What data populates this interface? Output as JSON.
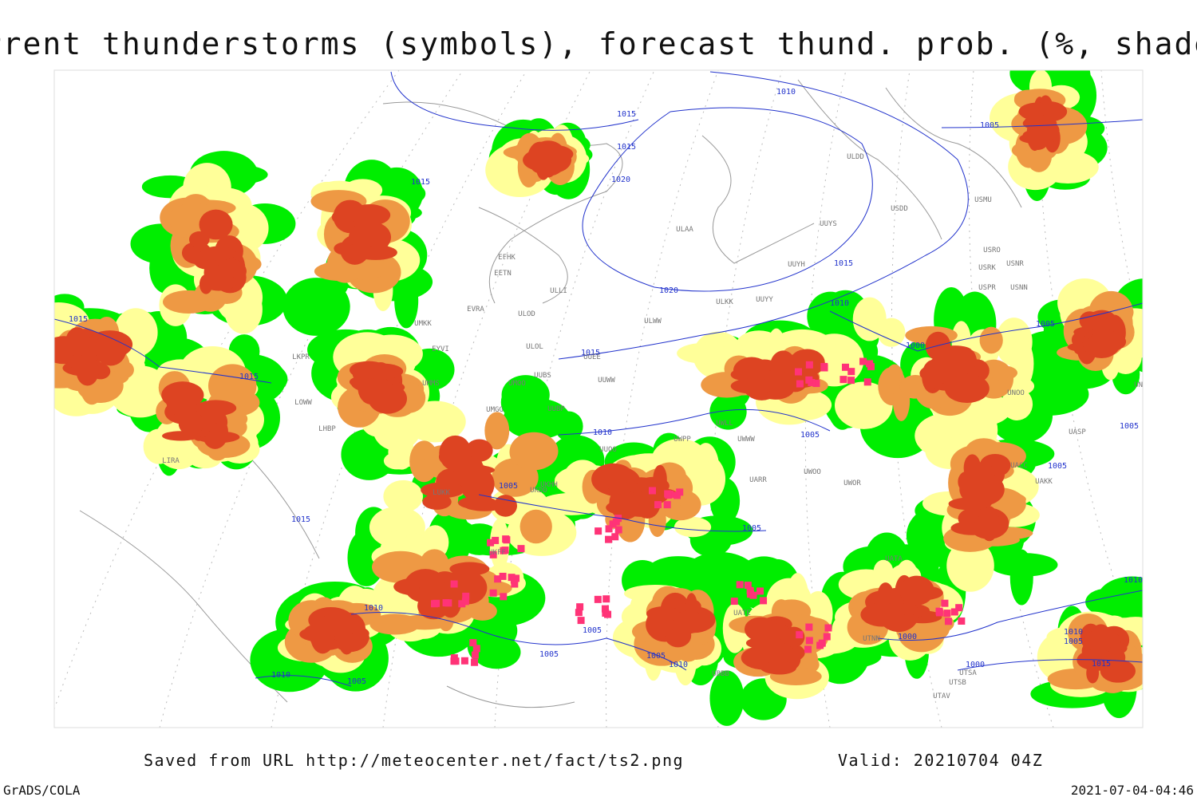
{
  "title": "Current thunderstorms (symbols), forecast thund. prob. (%, shaded)",
  "footer": {
    "source": "Saved from URL http://meteocenter.net/fact/ts2.png",
    "valid": "Valid: 20210704 04Z",
    "software": "GrADS/COLA",
    "timestamp": "2021-07-04-04:46"
  },
  "isobar_labels": [
    "1010",
    "1015",
    "1015",
    "1020",
    "1015",
    "1005",
    "1015",
    "1020",
    "1010",
    "1005",
    "1000",
    "1015",
    "1015",
    "1015",
    "1010",
    "1005",
    "1005",
    "1005",
    "1005",
    "1005",
    "1015",
    "1010",
    "1005",
    "1005",
    "1005",
    "1010",
    "1000",
    "1010",
    "1005",
    "1000",
    "1015",
    "1010",
    "1005",
    "1010"
  ],
  "station_labels": [
    "ULDD",
    "USDD",
    "USMU",
    "UUYS",
    "ULAA",
    "USRO",
    "USNR",
    "USRK",
    "USNN",
    "USPR",
    "UUYH",
    "EFHK",
    "EETN",
    "ULLI",
    "EVRA",
    "ULOD",
    "ULKK",
    "UUYY",
    "ULWW",
    "UMKK",
    "UUEE",
    "ULOL",
    "EYVI",
    "LKPR",
    "UUBS",
    "UUWW",
    "UMMS",
    "UMOO",
    "LOWW",
    "UMGG",
    "UUBP",
    "UWPP",
    "UWLL",
    "UWWW",
    "LHBP",
    "UUOO",
    "UKHH",
    "UKDD",
    "LIRA",
    "UWOO",
    "UWOR",
    "UARR",
    "UATA",
    "UATE",
    "UTSA",
    "UTSB",
    "UTAV",
    "UBBB",
    "UTNN",
    "UASP",
    "UAKK",
    "UACC",
    "UNOO",
    "UNBB",
    "UKFF",
    "LUKK"
  ]
}
